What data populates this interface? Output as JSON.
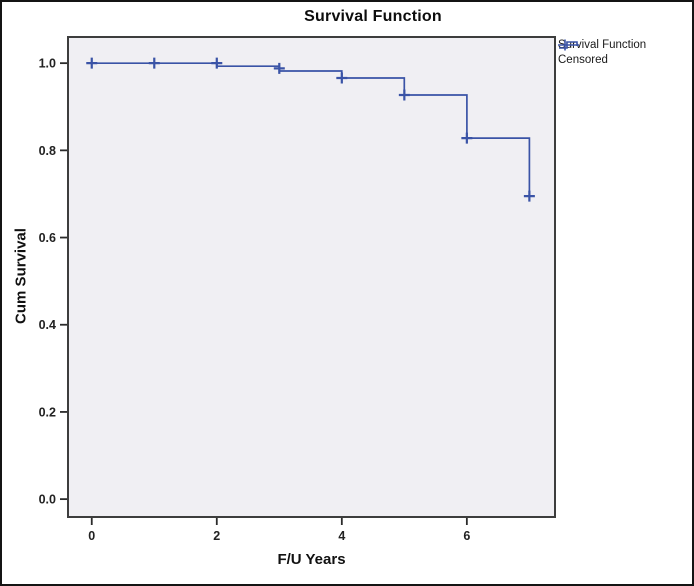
{
  "figure": {
    "title": "Survival Function",
    "x_label": "F/U Years",
    "y_label": "Cum Survival"
  },
  "legend": {
    "items": [
      {
        "label": "Survival Function",
        "marker": "step-line-icon"
      },
      {
        "label": "Censored",
        "marker": "plus-marker-icon"
      }
    ]
  },
  "colors": {
    "series": "#3a53a6",
    "plot_bg": "#f0eff3",
    "plot_border": "#3d3d3d",
    "tick": "#2b2b2b",
    "text": "#1a1a1a"
  },
  "chart_data": {
    "type": "line",
    "subtype": "kaplan-meier-step",
    "title": "Survival Function",
    "xlabel": "F/U Years",
    "ylabel": "Cum Survival",
    "xlim": [
      -0.38,
      7.41
    ],
    "ylim": [
      -0.041,
      1.06
    ],
    "grid": false,
    "legend_position": "outside-top-right",
    "xticks": [
      {
        "v": 0,
        "label": "0"
      },
      {
        "v": 2,
        "label": "2"
      },
      {
        "v": 4,
        "label": "4"
      },
      {
        "v": 6,
        "label": "6"
      }
    ],
    "yticks": [
      {
        "v": 0.0,
        "label": "0.0"
      },
      {
        "v": 0.2,
        "label": "0.2"
      },
      {
        "v": 0.4,
        "label": "0.4"
      },
      {
        "v": 0.6,
        "label": "0.6"
      },
      {
        "v": 0.8,
        "label": "0.8"
      },
      {
        "v": 1.0,
        "label": "1.0"
      }
    ],
    "series": [
      {
        "name": "Survival Function",
        "type": "step",
        "points": [
          [
            0,
            1.0
          ],
          [
            2,
            1.0
          ],
          [
            2,
            0.993
          ],
          [
            3,
            0.993
          ],
          [
            3,
            0.982
          ],
          [
            4,
            0.982
          ],
          [
            4,
            0.966
          ],
          [
            5,
            0.966
          ],
          [
            5,
            0.927
          ],
          [
            6,
            0.927
          ],
          [
            6,
            0.828
          ],
          [
            7,
            0.828
          ],
          [
            7,
            0.695
          ]
        ]
      },
      {
        "name": "Censored",
        "type": "plus-markers",
        "points": [
          [
            0,
            1.0
          ],
          [
            1,
            1.0
          ],
          [
            2,
            1.0
          ],
          [
            3,
            0.988
          ],
          [
            4,
            0.966
          ],
          [
            5,
            0.927
          ],
          [
            6,
            0.828
          ],
          [
            7,
            0.695
          ]
        ]
      }
    ]
  }
}
